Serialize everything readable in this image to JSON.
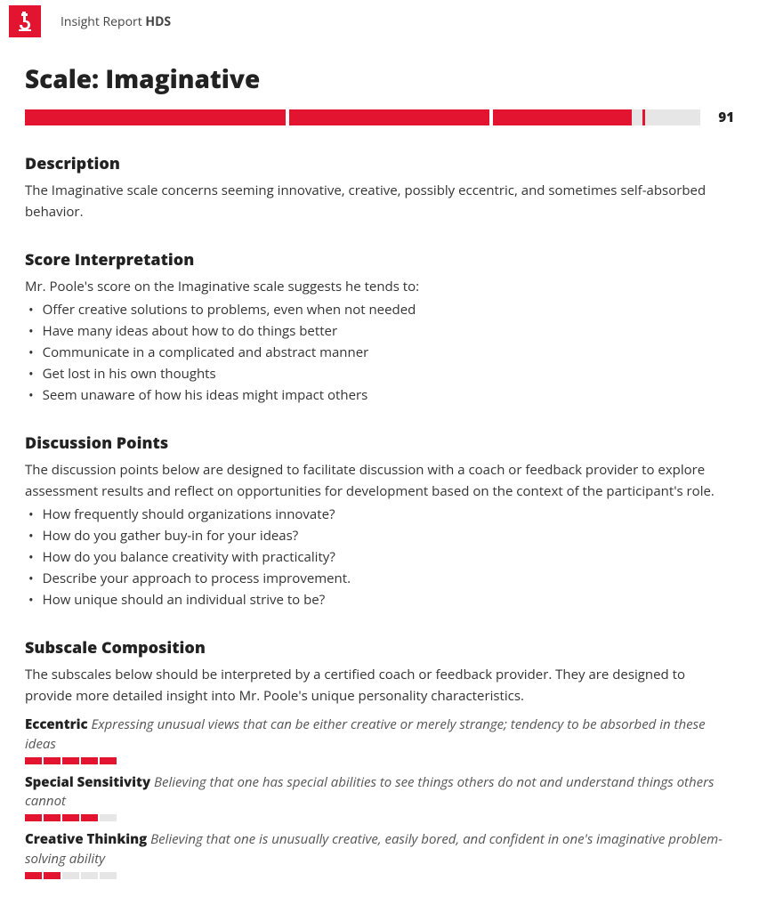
{
  "colors": {
    "accent": "#e3142f",
    "track": "#e6e6e6",
    "text": "#222"
  },
  "header": {
    "report_label": "Insight Report",
    "report_code": "HDS"
  },
  "title": "Scale: Imaginative",
  "score": {
    "value": 91,
    "segments": [
      {
        "width_pct": 39,
        "fill_pct": 100,
        "marker": null
      },
      {
        "width_pct": 30,
        "fill_pct": 100,
        "marker": null
      },
      {
        "width_pct": 31,
        "fill_pct": 67,
        "marker": 72
      }
    ]
  },
  "description": {
    "heading": "Description",
    "text": "The Imaginative scale concerns seeming innovative, creative, possibly eccentric, and sometimes self-absorbed behavior."
  },
  "interpretation": {
    "heading": "Score Interpretation",
    "lead": "Mr. Poole's score on the Imaginative scale suggests he tends to:",
    "items": [
      "Offer creative solutions to problems, even when not needed",
      "Have many ideas about how to do things better",
      "Communicate in a complicated and abstract manner",
      "Get lost in his own thoughts",
      "Seem unaware of how his ideas might impact others"
    ]
  },
  "discussion": {
    "heading": "Discussion Points",
    "lead": "The discussion points below are designed to facilitate discussion with a coach or feedback provider to explore assessment results and reflect on opportunities for development based on the context of the participant's role.",
    "items": [
      "How frequently should organizations innovate?",
      "How do you gather buy-in for your ideas?",
      "How do you balance creativity with practicality?",
      "Describe your approach to process improvement.",
      "How unique should an individual strive to be?"
    ]
  },
  "subscale": {
    "heading": "Subscale Composition",
    "lead": "The subscales below should be interpreted by a certified coach or feedback provider. They are designed to provide more detailed insight into Mr. Poole's unique personality characteristics.",
    "items": [
      {
        "name": "Eccentric",
        "desc": "Expressing unusual views that can be either creative or merely strange; tendency to be absorbed in these ideas",
        "filled": 5,
        "total": 5
      },
      {
        "name": "Special Sensitivity",
        "desc": "Believing that one has special abilities to see things others do not and understand things others cannot",
        "filled": 4,
        "total": 5
      },
      {
        "name": "Creative Thinking",
        "desc": "Believing that one is unusually creative, easily bored, and confident in one's imaginative problem-solving ability",
        "filled": 2,
        "total": 5
      }
    ]
  }
}
